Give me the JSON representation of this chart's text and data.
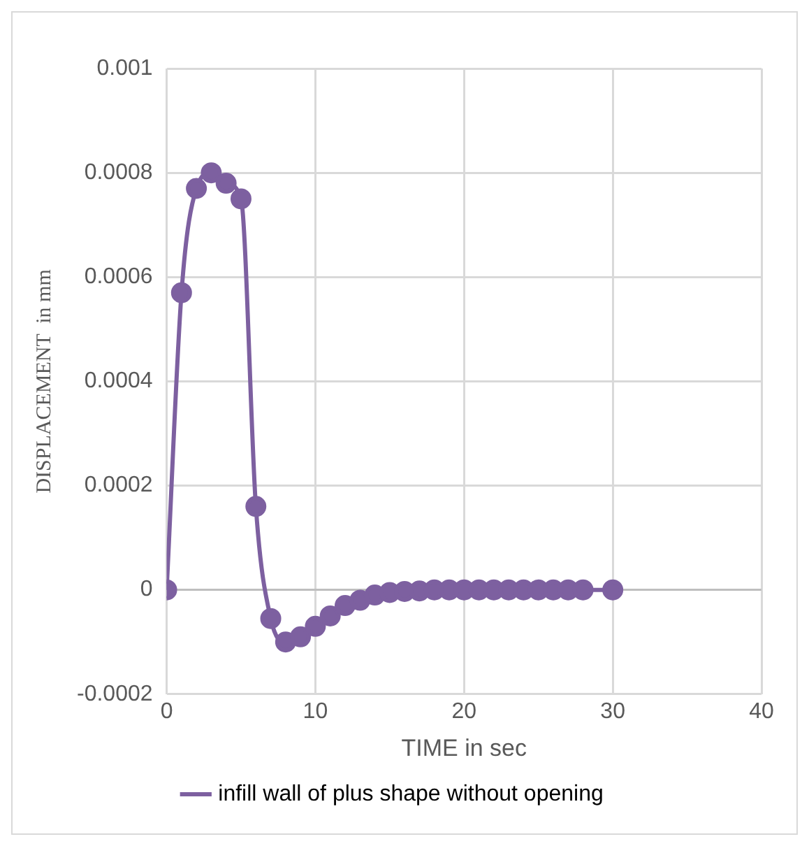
{
  "chart_data": {
    "type": "line",
    "xlabel": "TIME in sec",
    "ylabel": "DISPLACEMENT  in mm",
    "x": [
      0,
      1,
      2,
      3,
      4,
      5,
      6,
      7,
      8,
      9,
      10,
      11,
      12,
      13,
      14,
      15,
      16,
      17,
      18,
      19,
      20,
      21,
      22,
      23,
      24,
      25,
      26,
      27,
      28,
      30
    ],
    "series": [
      {
        "name": "infill wall of plus shape without opening",
        "color": "#7d60a0",
        "values": [
          0,
          0.00057,
          0.00077,
          0.0008,
          0.00078,
          0.00075,
          0.00016,
          -5.5e-05,
          -0.0001,
          -9e-05,
          -7e-05,
          -5e-05,
          -3e-05,
          -2e-05,
          -1e-05,
          -5e-06,
          -3e-06,
          -2e-06,
          0,
          0,
          0,
          0,
          0,
          0,
          0,
          0,
          0,
          0,
          0,
          0
        ]
      }
    ],
    "xlim": [
      0,
      40
    ],
    "xticks": [
      0,
      10,
      20,
      30,
      40
    ],
    "ylim": [
      -0.0002,
      0.001
    ],
    "yticks": [
      -0.0002,
      0,
      0.0002,
      0.0004,
      0.0006,
      0.0008,
      0.001
    ],
    "grid": true,
    "legend": "bottom",
    "marker": "circle",
    "line_style": "solid"
  }
}
